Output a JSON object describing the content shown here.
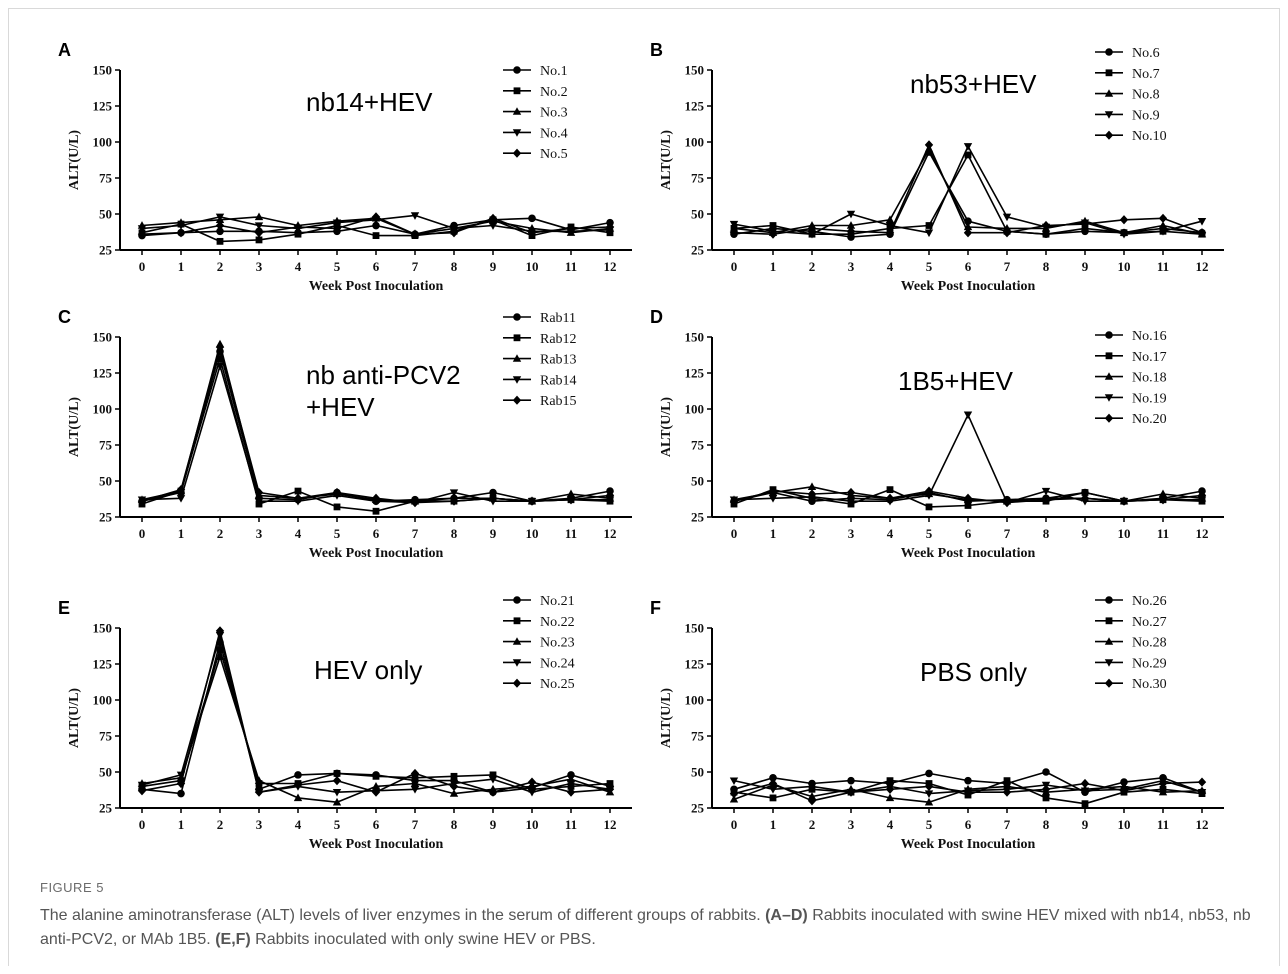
{
  "figure": {
    "label": "FIGURE 5",
    "caption": [
      {
        "t": "The alanine aminotransferase (ALT) levels of liver enzymes in the serum of different groups of rabbits. ",
        "b": false
      },
      {
        "t": "(A–D)",
        "b": true
      },
      {
        "t": " Rabbits inoculated with swine HEV mixed with nb14, nb53, nb anti-PCV2, or MAb 1B5. ",
        "b": false
      },
      {
        "t": "(E,F)",
        "b": true
      },
      {
        "t": " Rabbits inoculated with only swine HEV or PBS.",
        "b": false
      }
    ]
  },
  "chart_data": [
    {
      "type": "line",
      "panel": "A",
      "title": "nb14+HEV",
      "xlabel": "Week Post Inoculation",
      "ylabel": "ALT(U/L)",
      "x": [
        0,
        1,
        2,
        3,
        4,
        5,
        6,
        7,
        8,
        9,
        10,
        11,
        12
      ],
      "ylim": [
        25,
        150
      ],
      "yticks": [
        25,
        50,
        75,
        100,
        125,
        150
      ],
      "legend": "top-right",
      "series": [
        {
          "name": "No.1",
          "marker": "circle",
          "values": [
            35,
            37,
            38,
            38,
            37,
            38,
            42,
            36,
            42,
            46,
            47,
            39,
            44
          ]
        },
        {
          "name": "No.2",
          "marker": "square",
          "values": [
            37,
            43,
            31,
            32,
            36,
            42,
            35,
            35,
            38,
            46,
            35,
            41,
            37
          ]
        },
        {
          "name": "No.3",
          "marker": "triangle-up",
          "values": [
            42,
            44,
            46,
            48,
            42,
            45,
            47,
            36,
            40,
            45,
            40,
            37,
            40
          ]
        },
        {
          "name": "No.4",
          "marker": "triangle-down",
          "values": [
            40,
            42,
            48,
            42,
            40,
            44,
            46,
            49,
            40,
            42,
            38,
            38,
            39
          ]
        },
        {
          "name": "No.5",
          "marker": "diamond",
          "values": [
            36,
            37,
            42,
            37,
            41,
            40,
            48,
            36,
            37,
            47,
            37,
            40,
            41
          ]
        }
      ]
    },
    {
      "type": "line",
      "panel": "B",
      "title": "nb53+HEV",
      "xlabel": "Week Post Inoculation",
      "ylabel": "ALT(U/L)",
      "x": [
        0,
        1,
        2,
        3,
        4,
        5,
        6,
        7,
        8,
        9,
        10,
        11,
        12
      ],
      "ylim": [
        25,
        150
      ],
      "yticks": [
        25,
        50,
        75,
        100,
        125,
        150
      ],
      "legend": "top-right",
      "series": [
        {
          "name": "No.6",
          "marker": "circle",
          "values": [
            36,
            40,
            38,
            34,
            36,
            93,
            45,
            38,
            36,
            38,
            37,
            40,
            37
          ]
        },
        {
          "name": "No.7",
          "marker": "square",
          "values": [
            40,
            42,
            36,
            36,
            40,
            42,
            91,
            38,
            36,
            40,
            37,
            38,
            36
          ]
        },
        {
          "name": "No.8",
          "marker": "triangle-up",
          "values": [
            40,
            37,
            42,
            42,
            46,
            95,
            41,
            40,
            40,
            45,
            37,
            42,
            36
          ]
        },
        {
          "name": "No.9",
          "marker": "triangle-down",
          "values": [
            43,
            38,
            36,
            50,
            42,
            37,
            97,
            48,
            41,
            44,
            36,
            38,
            45
          ]
        },
        {
          "name": "No.10",
          "marker": "diamond",
          "values": [
            37,
            36,
            40,
            38,
            37,
            98,
            37,
            37,
            42,
            43,
            46,
            47,
            37
          ]
        }
      ]
    },
    {
      "type": "line",
      "panel": "C",
      "title": "nb anti-PCV2\n+HEV",
      "xlabel": "Week Post Inoculation",
      "ylabel": "ALT(U/L)",
      "x": [
        0,
        1,
        2,
        3,
        4,
        5,
        6,
        7,
        8,
        9,
        10,
        11,
        12
      ],
      "ylim": [
        25,
        150
      ],
      "yticks": [
        25,
        50,
        75,
        100,
        125,
        150
      ],
      "legend": "top-right",
      "series": [
        {
          "name": "Rab11",
          "marker": "circle",
          "values": [
            36,
            42,
            140,
            38,
            37,
            42,
            36,
            37,
            38,
            42,
            36,
            38,
            43
          ]
        },
        {
          "name": "Rab12",
          "marker": "square",
          "values": [
            34,
            43,
            135,
            34,
            43,
            32,
            29,
            36,
            36,
            38,
            36,
            37,
            36
          ]
        },
        {
          "name": "Rab13",
          "marker": "triangle-up",
          "values": [
            37,
            43,
            145,
            40,
            38,
            41,
            37,
            36,
            38,
            38,
            36,
            41,
            38
          ]
        },
        {
          "name": "Rab14",
          "marker": "triangle-down",
          "values": [
            37,
            38,
            130,
            36,
            36,
            40,
            36,
            35,
            42,
            36,
            36,
            37,
            37
          ]
        },
        {
          "name": "Rab15",
          "marker": "diamond",
          "values": [
            36,
            44,
            143,
            42,
            38,
            42,
            38,
            35,
            36,
            38,
            36,
            37,
            40
          ]
        }
      ]
    },
    {
      "type": "line",
      "panel": "D",
      "title": "1B5+HEV",
      "xlabel": "Week Post Inoculation",
      "ylabel": "ALT(U/L)",
      "x": [
        0,
        1,
        2,
        3,
        4,
        5,
        6,
        7,
        8,
        9,
        10,
        11,
        12
      ],
      "ylim": [
        25,
        150
      ],
      "yticks": [
        25,
        50,
        75,
        100,
        125,
        150
      ],
      "legend": "top-right",
      "series": [
        {
          "name": "No.16",
          "marker": "circle",
          "values": [
            36,
            42,
            36,
            38,
            37,
            42,
            36,
            37,
            38,
            42,
            36,
            38,
            43
          ]
        },
        {
          "name": "No.17",
          "marker": "square",
          "values": [
            34,
            44,
            38,
            34,
            44,
            32,
            33,
            36,
            36,
            42,
            36,
            37,
            36
          ]
        },
        {
          "name": "No.18",
          "marker": "triangle-up",
          "values": [
            37,
            42,
            46,
            40,
            38,
            41,
            37,
            36,
            38,
            38,
            36,
            41,
            38
          ]
        },
        {
          "name": "No.19",
          "marker": "triangle-down",
          "values": [
            37,
            38,
            39,
            36,
            36,
            40,
            96,
            35,
            43,
            36,
            36,
            37,
            37
          ]
        },
        {
          "name": "No.20",
          "marker": "diamond",
          "values": [
            36,
            43,
            41,
            42,
            38,
            43,
            38,
            35,
            37,
            38,
            36,
            37,
            40
          ]
        }
      ]
    },
    {
      "type": "line",
      "panel": "E",
      "title": "HEV only",
      "xlabel": "Week Post Inoculation",
      "ylabel": "ALT(U/L)",
      "x": [
        0,
        1,
        2,
        3,
        4,
        5,
        6,
        7,
        8,
        9,
        10,
        11,
        12
      ],
      "ylim": [
        25,
        150
      ],
      "yticks": [
        25,
        50,
        75,
        100,
        125,
        150
      ],
      "legend": "top-right",
      "series": [
        {
          "name": "No.21",
          "marker": "circle",
          "values": [
            38,
            35,
            140,
            38,
            48,
            49,
            48,
            44,
            44,
            36,
            39,
            48,
            40
          ]
        },
        {
          "name": "No.22",
          "marker": "square",
          "values": [
            40,
            44,
            135,
            42,
            42,
            49,
            47,
            46,
            47,
            48,
            38,
            40,
            42
          ]
        },
        {
          "name": "No.23",
          "marker": "triangle-up",
          "values": [
            42,
            46,
            130,
            44,
            32,
            29,
            40,
            42,
            35,
            38,
            40,
            45,
            36
          ]
        },
        {
          "name": "No.24",
          "marker": "triangle-down",
          "values": [
            41,
            48,
            145,
            36,
            40,
            36,
            37,
            38,
            42,
            45,
            36,
            42,
            38
          ]
        },
        {
          "name": "No.25",
          "marker": "diamond",
          "values": [
            37,
            42,
            148,
            36,
            41,
            44,
            36,
            49,
            40,
            36,
            43,
            36,
            38
          ]
        }
      ]
    },
    {
      "type": "line",
      "panel": "F",
      "title": "PBS only",
      "xlabel": "Week Post Inoculation",
      "ylabel": "ALT(U/L)",
      "x": [
        0,
        1,
        2,
        3,
        4,
        5,
        6,
        7,
        8,
        9,
        10,
        11,
        12
      ],
      "ylim": [
        25,
        150
      ],
      "yticks": [
        25,
        50,
        75,
        100,
        125,
        150
      ],
      "legend": "top-right",
      "series": [
        {
          "name": "No.26",
          "marker": "circle",
          "values": [
            38,
            46,
            42,
            44,
            42,
            49,
            44,
            42,
            50,
            36,
            43,
            46,
            36
          ]
        },
        {
          "name": "No.27",
          "marker": "square",
          "values": [
            36,
            32,
            38,
            36,
            44,
            42,
            34,
            44,
            32,
            28,
            36,
            38,
            35
          ]
        },
        {
          "name": "No.28",
          "marker": "triangle-up",
          "values": [
            31,
            41,
            33,
            38,
            32,
            29,
            38,
            40,
            36,
            38,
            40,
            36,
            37
          ]
        },
        {
          "name": "No.29",
          "marker": "triangle-down",
          "values": [
            44,
            38,
            40,
            36,
            40,
            35,
            37,
            38,
            41,
            37,
            38,
            44,
            36
          ]
        },
        {
          "name": "No.30",
          "marker": "diamond",
          "values": [
            35,
            42,
            30,
            36,
            38,
            40,
            36,
            36,
            38,
            42,
            37,
            42,
            43
          ]
        }
      ]
    }
  ]
}
